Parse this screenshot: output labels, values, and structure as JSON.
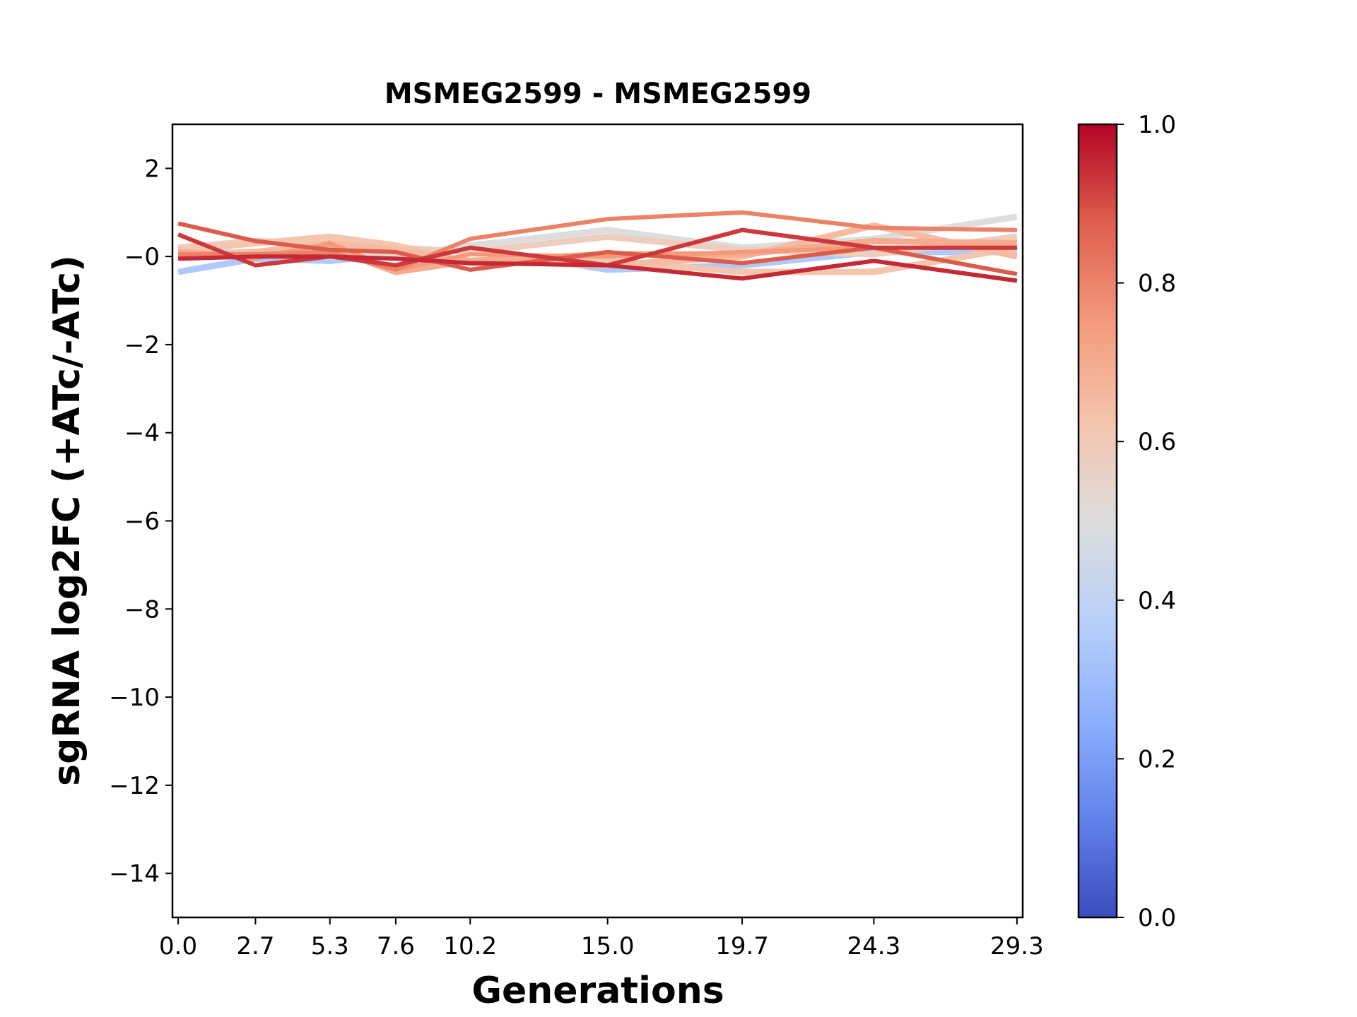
{
  "chart_data": {
    "type": "line",
    "title": "MSMEG2599 - MSMEG2599",
    "xlabel": "Generations",
    "ylabel": "sgRNA log2FC (+ATc/-ATc)",
    "x": [
      0.0,
      2.7,
      5.3,
      7.6,
      10.2,
      15.0,
      19.7,
      24.3,
      29.3
    ],
    "x_tick_labels": [
      "0.0",
      "2.7",
      "5.3",
      "7.6",
      "10.2",
      "15.0",
      "19.7",
      "24.3",
      "29.3"
    ],
    "y_ticks": [
      2,
      0,
      -2,
      -4,
      -6,
      -8,
      -10,
      -12,
      -14
    ],
    "y_tick_labels": [
      "2",
      "−0",
      "−2",
      "−4",
      "−6",
      "−8",
      "−10",
      "−12",
      "−14"
    ],
    "xlim": [
      -0.2,
      29.5
    ],
    "ylim": [
      -15,
      3
    ],
    "grid": false,
    "colormap": "coolwarm",
    "colorbar": {
      "range": [
        0.0,
        1.0
      ],
      "tick_labels": [
        "0.0",
        "0.2",
        "0.4",
        "0.6",
        "0.8",
        "1.0"
      ],
      "ticks": [
        0.0,
        0.2,
        0.4,
        0.6,
        0.8,
        1.0
      ]
    },
    "series": [
      {
        "color_value": 0.35,
        "values": [
          -0.35,
          -0.05,
          -0.1,
          0.05,
          0.2,
          -0.3,
          -0.2,
          0.1,
          0.1
        ]
      },
      {
        "color_value": 0.5,
        "values": [
          0.1,
          0.1,
          0.0,
          0.0,
          0.25,
          0.6,
          0.2,
          0.4,
          0.9
        ]
      },
      {
        "color_value": 0.58,
        "values": [
          0.2,
          0.35,
          0.3,
          0.2,
          0.1,
          0.45,
          0.15,
          0.05,
          0.45
        ]
      },
      {
        "color_value": 0.62,
        "values": [
          0.15,
          0.3,
          0.45,
          0.25,
          -0.15,
          -0.1,
          -0.35,
          -0.35,
          0.2
        ]
      },
      {
        "color_value": 0.65,
        "values": [
          0.0,
          0.1,
          0.3,
          0.15,
          -0.1,
          -0.2,
          0.0,
          0.7,
          0.0
        ]
      },
      {
        "color_value": 0.7,
        "values": [
          0.1,
          0.0,
          0.2,
          -0.35,
          -0.1,
          0.05,
          0.05,
          0.35,
          0.3
        ]
      },
      {
        "color_value": 0.75,
        "values": [
          0.05,
          -0.05,
          0.3,
          -0.3,
          0.05,
          0.0,
          0.1,
          0.2,
          0.2
        ]
      },
      {
        "color_value": 0.8,
        "values": [
          0.05,
          0.05,
          0.1,
          -0.3,
          0.4,
          0.85,
          1.0,
          0.65,
          0.6
        ]
      },
      {
        "color_value": 0.88,
        "values": [
          0.75,
          0.35,
          0.15,
          0.1,
          -0.3,
          0.1,
          -0.15,
          0.2,
          -0.4
        ]
      },
      {
        "color_value": 0.93,
        "values": [
          0.5,
          -0.2,
          0.0,
          -0.2,
          0.2,
          -0.2,
          0.6,
          0.2,
          0.2
        ]
      },
      {
        "color_value": 0.95,
        "values": [
          -0.05,
          0.0,
          0.0,
          -0.05,
          -0.15,
          -0.2,
          -0.5,
          -0.1,
          -0.55
        ]
      }
    ]
  }
}
